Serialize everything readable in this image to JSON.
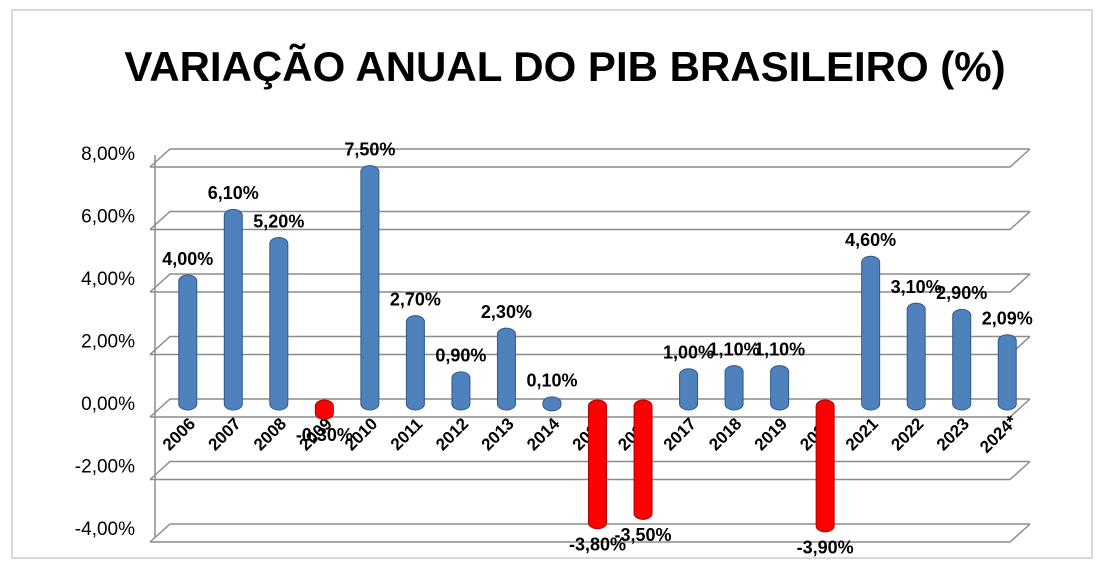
{
  "chart_data": {
    "type": "bar",
    "title": "VARIAÇÃO ANUAL DO PIB BRASILEIRO (%)",
    "categories": [
      "2006",
      "2007",
      "2008",
      "2009",
      "2010",
      "2011",
      "2012",
      "2013",
      "2014",
      "2015",
      "2016",
      "2017",
      "2018",
      "2019",
      "2020",
      "2021",
      "2022",
      "2023",
      "2024*"
    ],
    "values": [
      4.0,
      6.1,
      5.2,
      -0.3,
      7.5,
      2.7,
      0.9,
      2.3,
      0.1,
      -3.8,
      -3.5,
      1.0,
      1.1,
      1.1,
      -3.9,
      4.6,
      3.1,
      2.9,
      2.09
    ],
    "value_labels": [
      "4,00%",
      "6,10%",
      "5,20%",
      "-0,30%",
      "7,50%",
      "2,70%",
      "0,90%",
      "2,30%",
      "0,10%",
      "-3,80%",
      "-3,50%",
      "1,00%",
      "1,10%",
      "1,10%",
      "-3,90%",
      "4,60%",
      "3,10%",
      "2,90%",
      "2,09%"
    ],
    "positive_color": "#4f81bd",
    "negative_color": "#ff0000",
    "ylim": [
      -4,
      8
    ],
    "yticks": [
      {
        "value": -4,
        "label": "-4,00%"
      },
      {
        "value": -2,
        "label": "-2,00%"
      },
      {
        "value": 0,
        "label": "0,00%"
      },
      {
        "value": 2,
        "label": "2,00%"
      },
      {
        "value": 4,
        "label": "4,00%"
      },
      {
        "value": 6,
        "label": "6,00%"
      },
      {
        "value": 8,
        "label": "8,00%"
      }
    ],
    "grid": true
  }
}
